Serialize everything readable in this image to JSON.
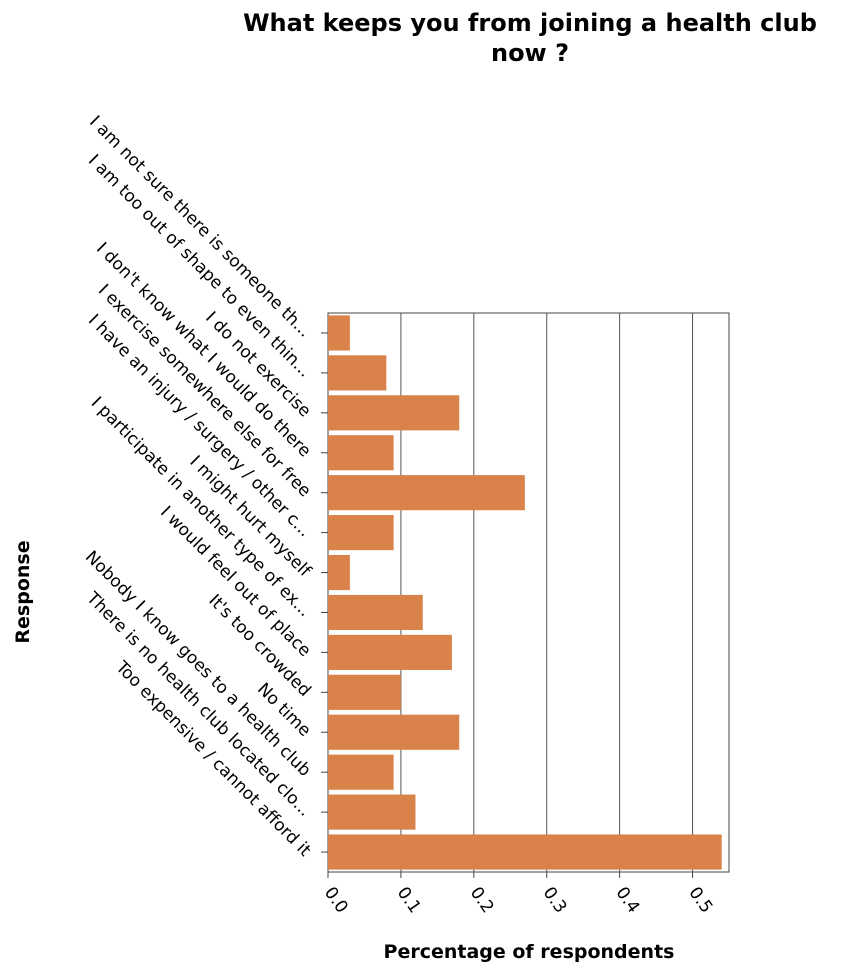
{
  "chart_data": {
    "type": "bar",
    "orientation": "horizontal",
    "title_lines": [
      "What keeps you from joining a health club",
      "now ?"
    ],
    "xlabel": "Percentage of respondents",
    "ylabel": "Response",
    "xlim": [
      0,
      0.55
    ],
    "xticks": [
      "0.0",
      "0.1",
      "0.2",
      "0.3",
      "0.4",
      "0.5"
    ],
    "grid": "vertical",
    "bar_color": "#d9834a",
    "categories": [
      "I am not sure there is someone th...",
      "I am too out of shape to even thin...",
      "I do not exercise",
      "I don't know what I would do there",
      "I exercise somewhere else for free",
      "I have an injury / surgery / other c...",
      "I might hurt myself",
      "I participate in another type of ex...",
      "I would feel out of place",
      "It's too crowded",
      "No time",
      "Nobody I know goes to a health club",
      "There is no health club located clo...",
      "Too expensive / cannot afford it"
    ],
    "values": [
      0.03,
      0.08,
      0.18,
      0.09,
      0.27,
      0.09,
      0.03,
      0.13,
      0.17,
      0.1,
      0.18,
      0.09,
      0.12,
      0.54
    ]
  }
}
